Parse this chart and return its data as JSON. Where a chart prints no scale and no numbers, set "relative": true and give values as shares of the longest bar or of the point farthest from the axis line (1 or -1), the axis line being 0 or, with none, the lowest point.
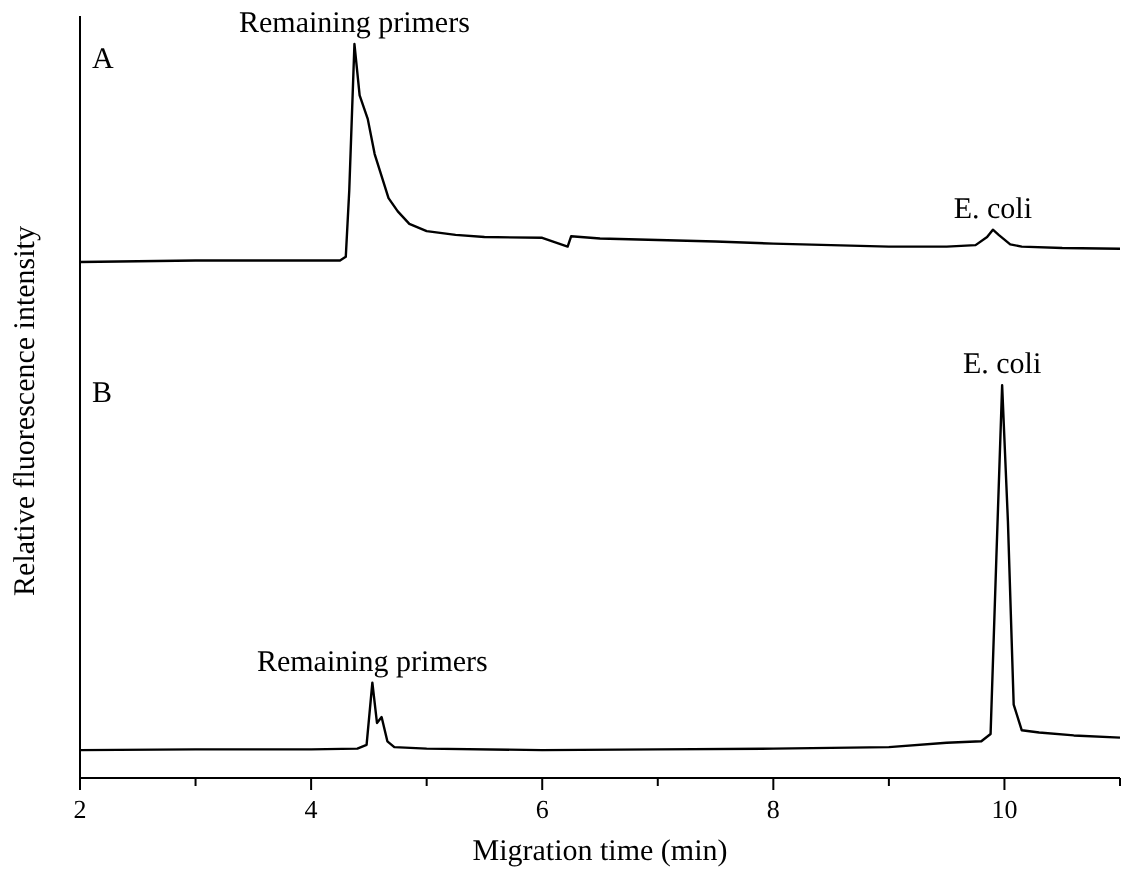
{
  "chart_data": {
    "type": "line",
    "relative": true,
    "xlabel": "Migration time (min)",
    "ylabel": "Relative fluorescence intensity",
    "xlim": [
      2,
      11
    ],
    "xticks": [
      2,
      {
        "value": 3,
        "label": null
      },
      4,
      {
        "value": 5,
        "label": null
      },
      6,
      {
        "value": 7,
        "label": null
      },
      8,
      {
        "value": 9,
        "label": null
      },
      10,
      {
        "value": 11,
        "label": null
      }
    ],
    "grid": false,
    "marker": "none",
    "line_style": "solid",
    "series": [
      {
        "color": "#000000",
        "x": [
          2,
          2.5,
          3,
          3.5,
          4,
          4.25,
          4.3,
          4.33,
          4.375,
          4.42,
          4.49,
          4.55,
          4.67,
          4.75,
          4.85,
          5,
          5.25,
          5.5,
          6,
          6.22,
          6.25,
          6.5,
          7,
          7.5,
          8,
          8.5,
          9,
          9.5,
          9.75,
          9.85,
          9.9,
          9.95,
          10.05,
          10.15,
          10.5,
          11
        ],
        "values": [
          0.703,
          0.704,
          0.705,
          0.705,
          0.705,
          0.705,
          0.71,
          0.8,
          1,
          0.93,
          0.898,
          0.85,
          0.79,
          0.772,
          0.755,
          0.745,
          0.74,
          0.737,
          0.736,
          0.724,
          0.738,
          0.735,
          0.733,
          0.731,
          0.728,
          0.726,
          0.724,
          0.724,
          0.726,
          0.737,
          0.747,
          0.74,
          0.727,
          0.724,
          0.722,
          0.721
        ]
      },
      {
        "color": "#000000",
        "x": [
          2,
          3,
          4,
          4.4,
          4.48,
          4.53,
          4.57,
          4.61,
          4.66,
          4.72,
          5,
          6,
          7,
          8,
          9,
          9.5,
          9.8,
          9.88,
          9.93,
          9.98,
          10.03,
          10.08,
          10.15,
          10.3,
          10.6,
          11
        ],
        "values": [
          0.038,
          0.039,
          0.039,
          0.04,
          0.045,
          0.13,
          0.075,
          0.083,
          0.05,
          0.042,
          0.04,
          0.038,
          0.039,
          0.04,
          0.042,
          0.048,
          0.05,
          0.06,
          0.3,
          0.535,
          0.35,
          0.1,
          0.065,
          0.062,
          0.058,
          0.055
        ]
      }
    ],
    "annotations": [
      "A",
      "B",
      {
        "text": "Remaining primers",
        "x": 4.375,
        "y": 1
      },
      {
        "text": "E. coli",
        "x": 9.9,
        "y": 0.747
      },
      {
        "text": "Remaining primers",
        "x": 4.53,
        "y": 0.13
      },
      {
        "text": "E. coli",
        "x": 9.98,
        "y": 0.535
      }
    ]
  }
}
